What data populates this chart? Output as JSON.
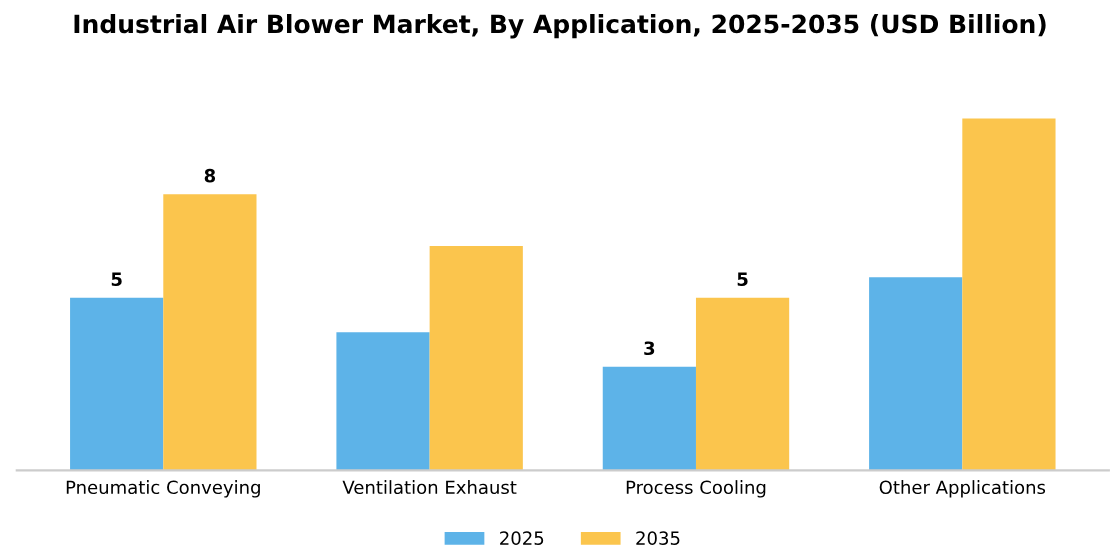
{
  "chart_data": {
    "type": "bar",
    "title": "Industrial Air Blower Market, By Application, 2025-2035 (USD Billion)",
    "categories": [
      "Pneumatic Conveying",
      "Ventilation Exhaust",
      "Process Cooling",
      "Other Applications"
    ],
    "series": [
      {
        "name": "2025",
        "color": "#5db3e8",
        "values": [
          5,
          4.0,
          3,
          5.6
        ],
        "value_labels": [
          "5",
          null,
          "3",
          null
        ]
      },
      {
        "name": "2035",
        "color": "#fbc54d",
        "values": [
          8,
          6.5,
          5,
          10.2
        ],
        "value_labels": [
          "8",
          null,
          "5",
          null
        ]
      }
    ],
    "tick_labels": "x",
    "grid": false,
    "legend": "bottom"
  }
}
